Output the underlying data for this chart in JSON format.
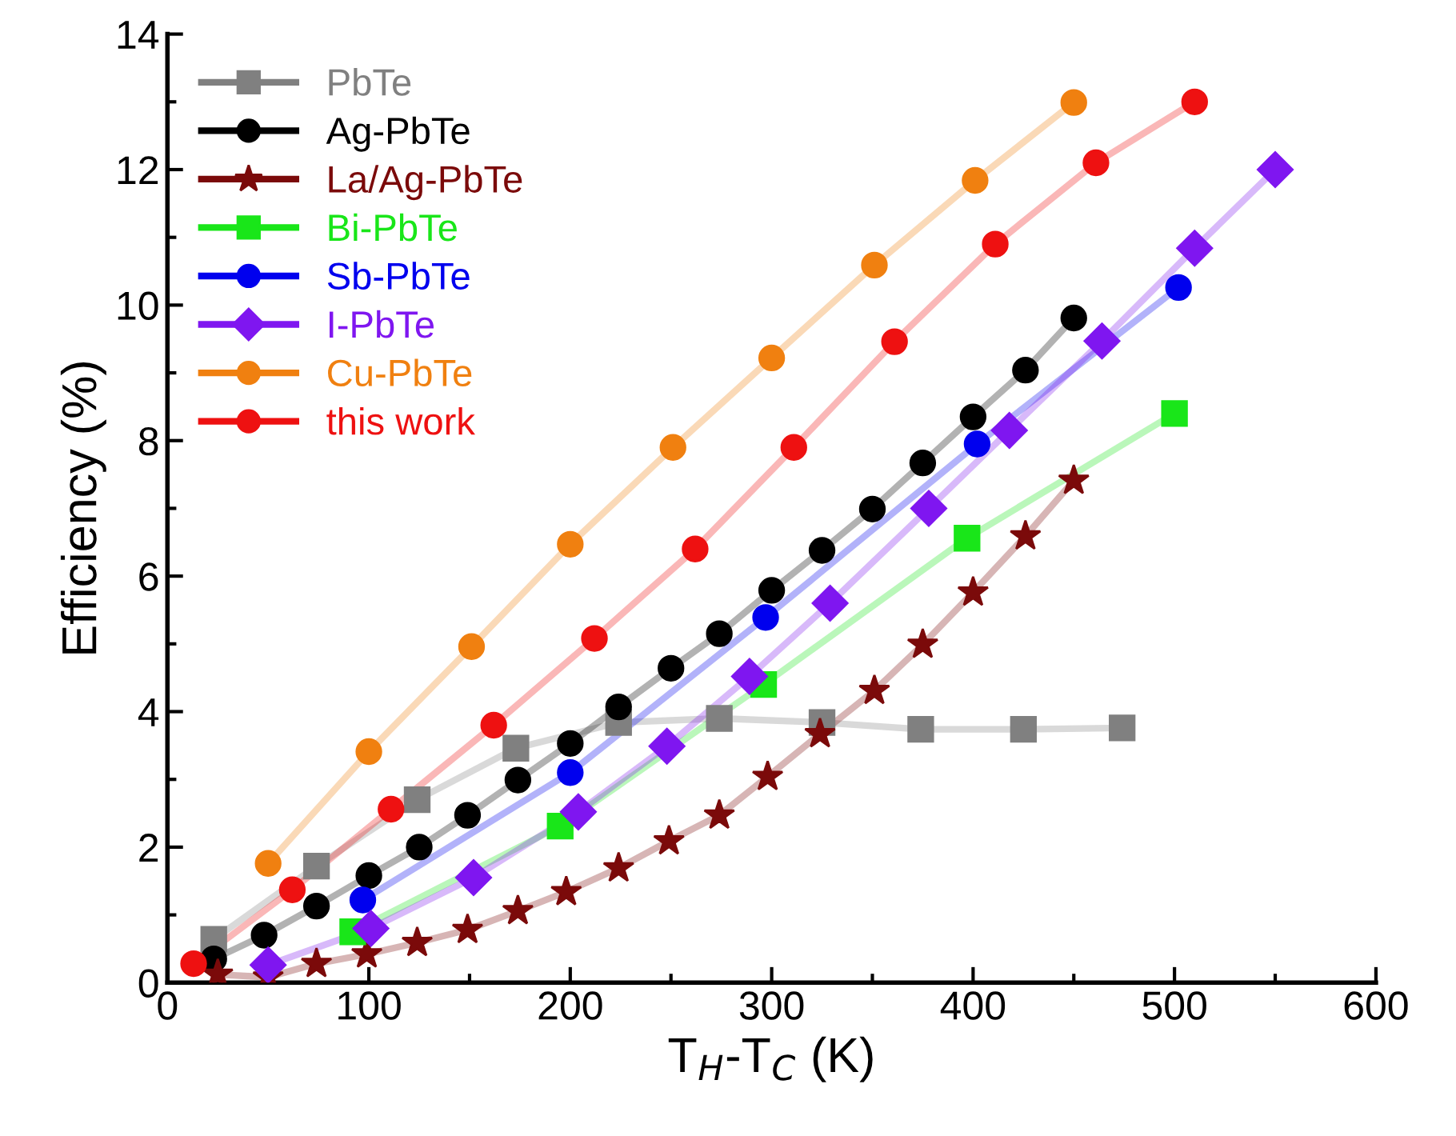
{
  "chart_data": {
    "type": "line",
    "xlabel": "T$_{H}$-T$_{C}$ (K)",
    "ylabel": "Efficiency (%)",
    "xlim": [
      0,
      600
    ],
    "xticks": [
      0,
      100,
      200,
      300,
      400,
      500,
      600
    ],
    "ylim": [
      0,
      14
    ],
    "yticks": [
      0,
      2,
      4,
      6,
      8,
      10,
      12,
      14
    ],
    "grid": false,
    "legend": "top left",
    "series": [
      {
        "name": "PbTe",
        "color": "#808080",
        "marker": "square",
        "x": [
          23,
          74,
          124,
          173,
          224,
          274,
          325,
          374,
          425,
          474
        ],
        "values": [
          0.64,
          1.72,
          2.7,
          3.46,
          3.84,
          3.9,
          3.84,
          3.74,
          3.74,
          3.76
        ]
      },
      {
        "name": "Ag-PbTe",
        "color": "#000000",
        "marker": "circle",
        "x": [
          23,
          48,
          74,
          100,
          125,
          149,
          174,
          200,
          224,
          250,
          274,
          300,
          325,
          350,
          375,
          400,
          426,
          450
        ],
        "values": [
          0.35,
          0.7,
          1.13,
          1.58,
          2.0,
          2.47,
          2.99,
          3.53,
          4.07,
          4.64,
          5.15,
          5.79,
          6.38,
          6.99,
          7.67,
          8.35,
          9.04,
          9.81
        ]
      },
      {
        "name": "La/Ag-PbTe",
        "color": "#7b0a0a",
        "marker": "star",
        "x": [
          25,
          50,
          74,
          99,
          124,
          149,
          174,
          198,
          224,
          249,
          274,
          298,
          324,
          351,
          375,
          400,
          426,
          450
        ],
        "values": [
          0.12,
          0.08,
          0.28,
          0.42,
          0.59,
          0.78,
          1.06,
          1.34,
          1.69,
          2.09,
          2.47,
          3.04,
          3.67,
          4.31,
          4.99,
          5.76,
          6.59,
          7.41
        ]
      },
      {
        "name": "Bi-PbTe",
        "color": "#19e619",
        "marker": "square",
        "x": [
          92,
          195,
          296,
          397,
          500
        ],
        "values": [
          0.75,
          2.31,
          4.4,
          6.56,
          8.4
        ]
      },
      {
        "name": "Sb-PbTe",
        "color": "#0000ee",
        "marker": "circle",
        "x": [
          97,
          200,
          297,
          402,
          502
        ],
        "values": [
          1.22,
          3.1,
          5.39,
          7.95,
          10.26
        ]
      },
      {
        "name": "I-PbTe",
        "color": "#7f16f0",
        "marker": "diamond",
        "x": [
          50,
          101,
          152,
          204,
          248,
          289,
          329,
          378,
          418,
          464,
          510,
          550
        ],
        "values": [
          0.26,
          0.8,
          1.55,
          2.52,
          3.49,
          4.52,
          5.6,
          7.0,
          8.15,
          9.47,
          10.84,
          12.0
        ]
      },
      {
        "name": "Cu-PbTe",
        "color": "#f08010",
        "marker": "circle",
        "x": [
          50,
          100,
          151,
          200,
          251,
          300,
          351,
          401,
          450
        ],
        "values": [
          1.76,
          3.41,
          4.96,
          6.47,
          7.9,
          9.22,
          10.59,
          11.84,
          12.99
        ]
      },
      {
        "name": "this work",
        "color": "#ee1111",
        "marker": "circle",
        "x": [
          13,
          62,
          111,
          162,
          212,
          262,
          311,
          361,
          411,
          461,
          510
        ],
        "values": [
          0.28,
          1.37,
          2.56,
          3.8,
          5.08,
          6.4,
          7.9,
          9.46,
          10.9,
          12.1,
          13.0
        ]
      }
    ]
  }
}
